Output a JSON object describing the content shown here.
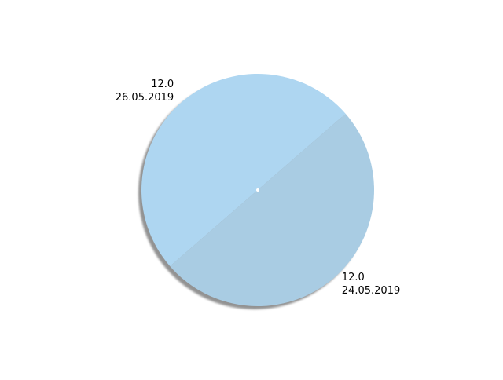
{
  "chart_data": {
    "type": "pie",
    "title": "",
    "shadow": true,
    "slices": [
      {
        "value": 12.0,
        "value_label": "12.0",
        "date_label": "26.05.2019",
        "color": "#aed6f1"
      },
      {
        "value": 12.0,
        "value_label": "12.0",
        "date_label": "24.05.2019",
        "color": "#a9cce3"
      }
    ],
    "center_dot_color": "#ffffff",
    "shadow_color": "#808080"
  }
}
